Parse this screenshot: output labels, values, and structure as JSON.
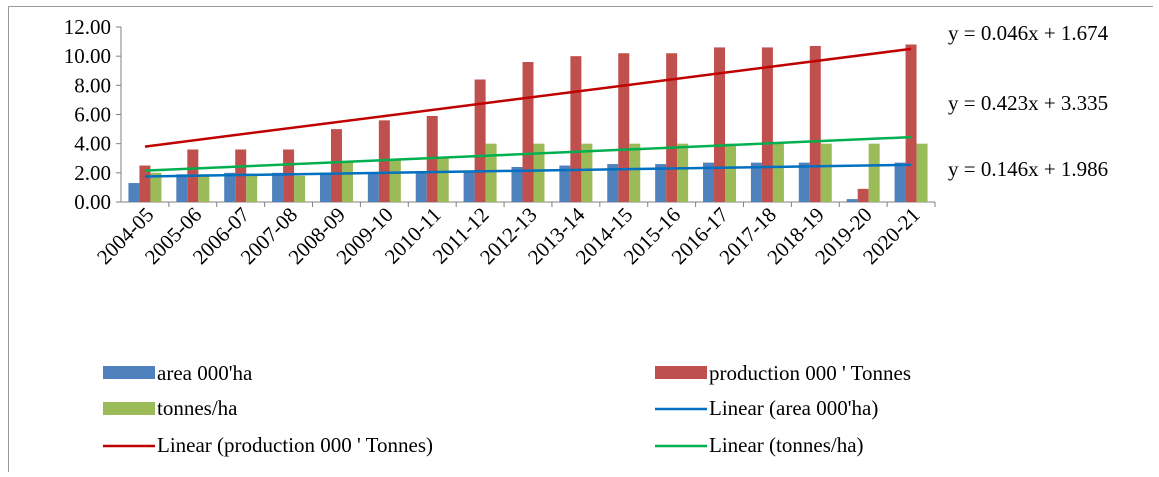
{
  "chart_data": {
    "type": "bar",
    "categories": [
      "2004-05",
      "2005-06",
      "2006-07",
      "2007-08",
      "2008-09",
      "2009-10",
      "2010-11",
      "2011-12",
      "2012-13",
      "2013-14",
      "2014-15",
      "2015-16",
      "2016-17",
      "2017-18",
      "2018-19",
      "2019-20",
      "2020-21"
    ],
    "series": [
      {
        "name": "area 000'ha",
        "color": "#4f81bd",
        "values": [
          1.3,
          1.9,
          2.0,
          2.0,
          2.0,
          2.0,
          2.0,
          2.1,
          2.4,
          2.5,
          2.6,
          2.6,
          2.7,
          2.7,
          2.7,
          0.2,
          2.7
        ]
      },
      {
        "name": "production 000 ' Tonnes",
        "color": "#c0504d",
        "values": [
          2.5,
          3.6,
          3.6,
          3.6,
          5.0,
          5.6,
          5.9,
          8.4,
          9.6,
          10.0,
          10.2,
          10.2,
          10.6,
          10.6,
          10.7,
          0.9,
          10.8
        ]
      },
      {
        "name": "tonnes/ha",
        "color": "#9bbb59",
        "values": [
          2.0,
          1.9,
          1.8,
          1.8,
          2.8,
          2.9,
          3.0,
          4.0,
          4.0,
          4.0,
          4.0,
          4.0,
          4.0,
          4.0,
          4.0,
          4.0,
          4.0
        ]
      }
    ],
    "trendlines": [
      {
        "name": "Linear (area 000'ha)",
        "color": "#0070c0",
        "start": 1.75,
        "end": 2.55
      },
      {
        "name": "Linear (production 000 ' Tonnes)",
        "color": "#c00000",
        "start": 3.8,
        "end": 10.5
      },
      {
        "name": "Linear (tonnes/ha)",
        "color": "#00b050",
        "start": 2.15,
        "end": 4.45
      }
    ],
    "equations": [
      "y = 0.046x + 1.674",
      "y = 0.423x + 3.335",
      "y = 0.146x + 1.986"
    ],
    "ylim": [
      0,
      12
    ],
    "yticks": [
      "0.00",
      "2.00",
      "4.00",
      "6.00",
      "8.00",
      "10.00",
      "12.00"
    ],
    "grid": false,
    "legend_position": "bottom"
  }
}
